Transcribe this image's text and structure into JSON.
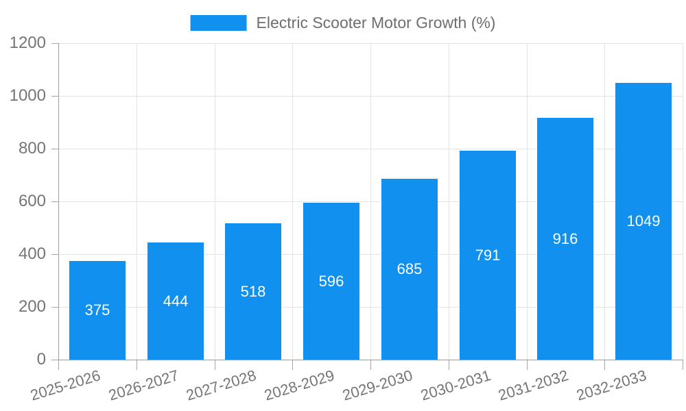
{
  "chart_data": {
    "type": "bar",
    "title": "Electric Scooter Motor Growth (%)",
    "categories": [
      "2025-2026",
      "2026-2027",
      "2027-2028",
      "2028-2029",
      "2029-2030",
      "2030-2031",
      "2031-2032",
      "2032-2033"
    ],
    "values": [
      375,
      444,
      518,
      596,
      685,
      791,
      916,
      1049
    ],
    "xlabel": "",
    "ylabel": "",
    "ylim": [
      0,
      1200
    ],
    "yticks": [
      0,
      200,
      400,
      600,
      800,
      1000,
      1200
    ],
    "grid": true,
    "legend_position": "top-center",
    "value_labels": "inside-center",
    "colors": {
      "bar": "#1190F0",
      "bar_value_label": "#ffffff",
      "axis_text": "#757575",
      "title_text": "#6e6e6e",
      "gridline": "#e3e3e3",
      "axis_line": "#9e9e9e"
    }
  }
}
